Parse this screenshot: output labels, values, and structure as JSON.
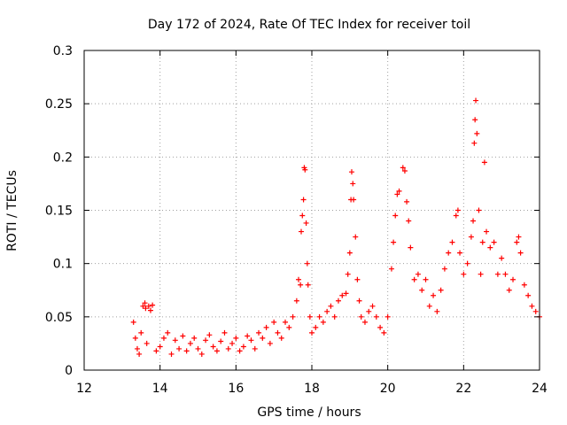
{
  "chart_data": {
    "type": "scatter",
    "title": "Day 172 of 2024, Rate Of TEC Index for receiver toil",
    "xlabel": "GPS time / hours",
    "ylabel": "ROTI / TECUs",
    "xlim": [
      12,
      24
    ],
    "ylim": [
      0,
      0.3
    ],
    "xticks": [
      "12",
      "14",
      "16",
      "18",
      "20",
      "22",
      "24"
    ],
    "yticks": [
      "0",
      "0.05",
      "0.1",
      "0.15",
      "0.2",
      "0.25",
      "0.3"
    ],
    "grid": true,
    "marker": "+",
    "series": [
      {
        "name": "ROTI",
        "color": "#ff0000",
        "points": [
          [
            13.3,
            0.045
          ],
          [
            13.35,
            0.03
          ],
          [
            13.4,
            0.02
          ],
          [
            13.45,
            0.015
          ],
          [
            13.5,
            0.035
          ],
          [
            13.55,
            0.06
          ],
          [
            13.6,
            0.063
          ],
          [
            13.62,
            0.058
          ],
          [
            13.7,
            0.06
          ],
          [
            13.8,
            0.061
          ],
          [
            13.75,
            0.056
          ],
          [
            13.65,
            0.025
          ],
          [
            13.9,
            0.018
          ],
          [
            14.0,
            0.022
          ],
          [
            14.1,
            0.03
          ],
          [
            14.2,
            0.035
          ],
          [
            14.3,
            0.015
          ],
          [
            14.4,
            0.028
          ],
          [
            14.5,
            0.02
          ],
          [
            14.6,
            0.032
          ],
          [
            14.7,
            0.018
          ],
          [
            14.8,
            0.025
          ],
          [
            14.9,
            0.03
          ],
          [
            15.0,
            0.02
          ],
          [
            15.1,
            0.015
          ],
          [
            15.2,
            0.028
          ],
          [
            15.3,
            0.033
          ],
          [
            15.4,
            0.022
          ],
          [
            15.5,
            0.018
          ],
          [
            15.6,
            0.027
          ],
          [
            15.7,
            0.035
          ],
          [
            15.8,
            0.02
          ],
          [
            15.9,
            0.025
          ],
          [
            16.0,
            0.03
          ],
          [
            16.1,
            0.018
          ],
          [
            16.2,
            0.022
          ],
          [
            16.3,
            0.032
          ],
          [
            16.4,
            0.028
          ],
          [
            16.5,
            0.02
          ],
          [
            16.6,
            0.035
          ],
          [
            16.7,
            0.03
          ],
          [
            16.8,
            0.04
          ],
          [
            16.9,
            0.025
          ],
          [
            17.0,
            0.045
          ],
          [
            17.1,
            0.035
          ],
          [
            17.2,
            0.03
          ],
          [
            17.3,
            0.045
          ],
          [
            17.4,
            0.04
          ],
          [
            17.5,
            0.05
          ],
          [
            17.6,
            0.065
          ],
          [
            17.65,
            0.085
          ],
          [
            17.7,
            0.08
          ],
          [
            17.72,
            0.13
          ],
          [
            17.75,
            0.145
          ],
          [
            17.78,
            0.16
          ],
          [
            17.8,
            0.19
          ],
          [
            17.82,
            0.188
          ],
          [
            17.85,
            0.138
          ],
          [
            17.88,
            0.1
          ],
          [
            17.9,
            0.08
          ],
          [
            17.95,
            0.05
          ],
          [
            18.0,
            0.035
          ],
          [
            18.1,
            0.04
          ],
          [
            18.2,
            0.05
          ],
          [
            18.3,
            0.045
          ],
          [
            18.4,
            0.055
          ],
          [
            18.5,
            0.06
          ],
          [
            18.6,
            0.05
          ],
          [
            18.7,
            0.065
          ],
          [
            18.8,
            0.07
          ],
          [
            18.9,
            0.072
          ],
          [
            18.95,
            0.09
          ],
          [
            19.0,
            0.11
          ],
          [
            19.03,
            0.16
          ],
          [
            19.05,
            0.186
          ],
          [
            19.08,
            0.175
          ],
          [
            19.1,
            0.16
          ],
          [
            19.15,
            0.125
          ],
          [
            19.2,
            0.085
          ],
          [
            19.25,
            0.065
          ],
          [
            19.3,
            0.05
          ],
          [
            19.4,
            0.045
          ],
          [
            19.5,
            0.055
          ],
          [
            19.6,
            0.06
          ],
          [
            19.7,
            0.05
          ],
          [
            19.8,
            0.04
          ],
          [
            19.9,
            0.035
          ],
          [
            20.0,
            0.05
          ],
          [
            20.1,
            0.095
          ],
          [
            20.15,
            0.12
          ],
          [
            20.2,
            0.145
          ],
          [
            20.25,
            0.165
          ],
          [
            20.3,
            0.168
          ],
          [
            20.4,
            0.19
          ],
          [
            20.45,
            0.187
          ],
          [
            20.5,
            0.158
          ],
          [
            20.55,
            0.14
          ],
          [
            20.6,
            0.115
          ],
          [
            20.7,
            0.085
          ],
          [
            20.8,
            0.09
          ],
          [
            20.9,
            0.075
          ],
          [
            21.0,
            0.085
          ],
          [
            21.1,
            0.06
          ],
          [
            21.2,
            0.07
          ],
          [
            21.3,
            0.055
          ],
          [
            21.4,
            0.075
          ],
          [
            21.5,
            0.095
          ],
          [
            21.6,
            0.11
          ],
          [
            21.7,
            0.12
          ],
          [
            21.8,
            0.145
          ],
          [
            21.85,
            0.15
          ],
          [
            21.9,
            0.11
          ],
          [
            22.0,
            0.09
          ],
          [
            22.1,
            0.1
          ],
          [
            22.2,
            0.125
          ],
          [
            22.25,
            0.14
          ],
          [
            22.28,
            0.213
          ],
          [
            22.3,
            0.235
          ],
          [
            22.32,
            0.253
          ],
          [
            22.35,
            0.222
          ],
          [
            22.4,
            0.15
          ],
          [
            22.45,
            0.09
          ],
          [
            22.5,
            0.12
          ],
          [
            22.55,
            0.195
          ],
          [
            22.6,
            0.13
          ],
          [
            22.7,
            0.115
          ],
          [
            22.8,
            0.12
          ],
          [
            22.9,
            0.09
          ],
          [
            23.0,
            0.105
          ],
          [
            23.1,
            0.09
          ],
          [
            23.2,
            0.075
          ],
          [
            23.3,
            0.085
          ],
          [
            23.4,
            0.12
          ],
          [
            23.45,
            0.125
          ],
          [
            23.5,
            0.11
          ],
          [
            23.6,
            0.08
          ],
          [
            23.7,
            0.07
          ],
          [
            23.8,
            0.06
          ],
          [
            23.9,
            0.055
          ],
          [
            24.0,
            0.05
          ]
        ]
      }
    ]
  }
}
